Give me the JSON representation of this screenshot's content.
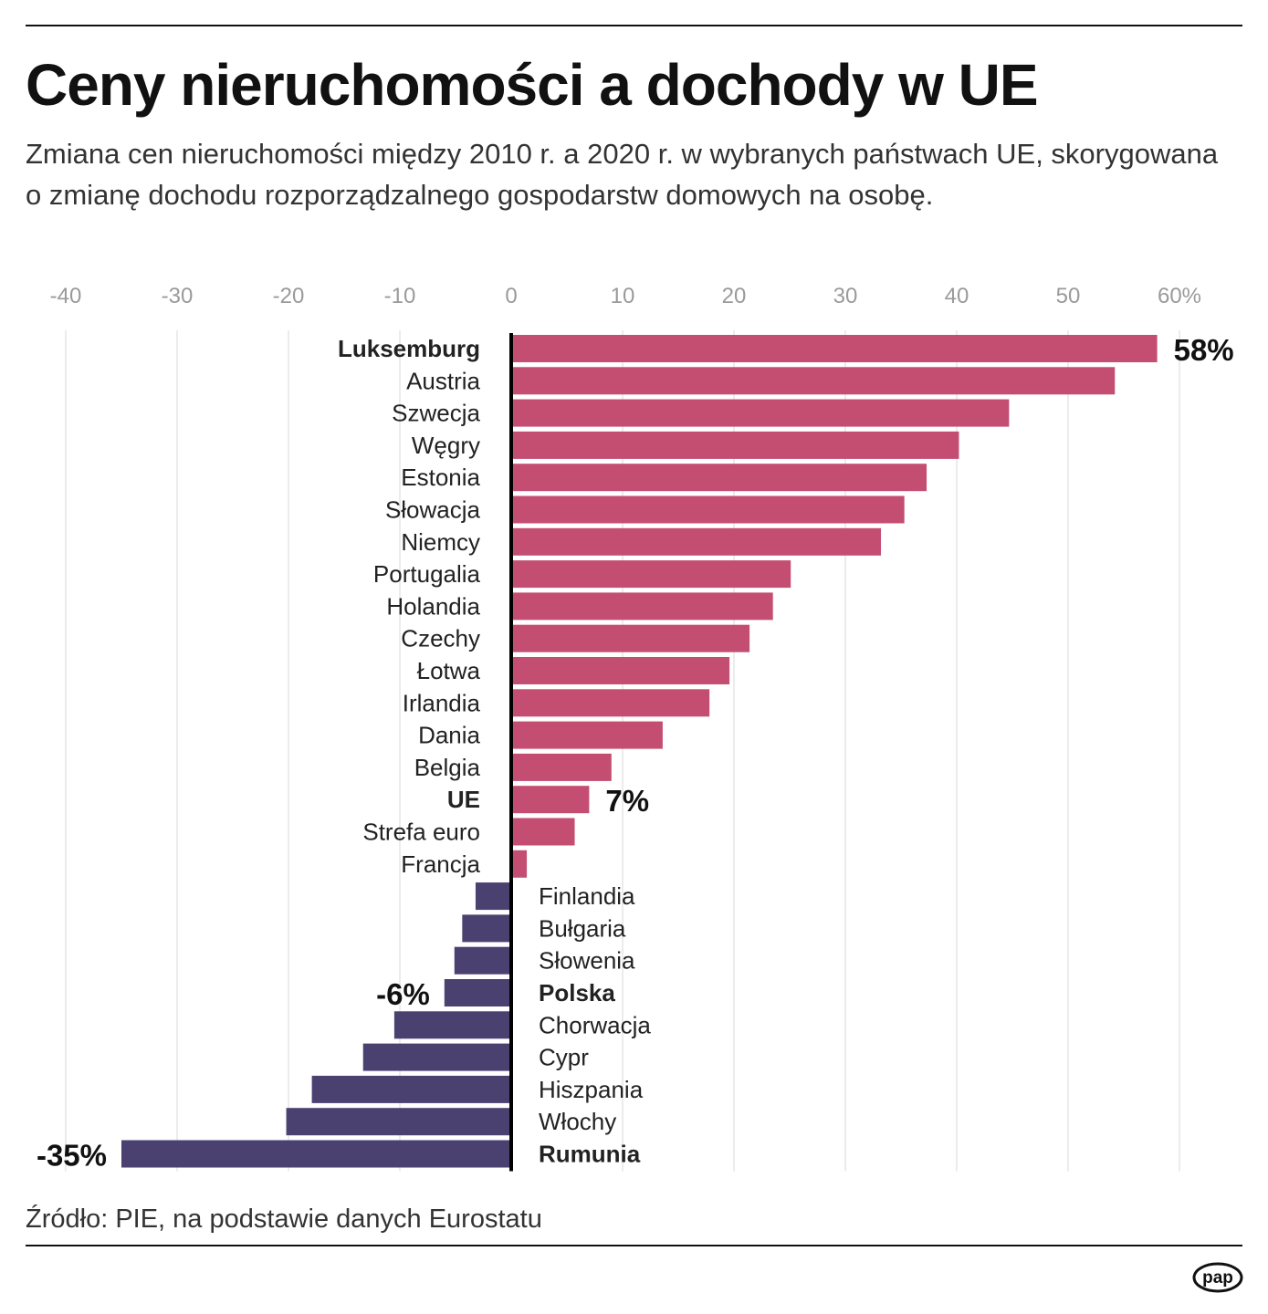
{
  "header": {
    "title": "Ceny nieruchomości a dochody w UE",
    "subtitle": "Zmiana cen nieruchomości między 2010 r. a 2020 r. w wybranych państwach UE, skorygowana o zmianę dochodu rozporządzalnego gospodarstw domowych na osobę."
  },
  "footer": {
    "source": "Źródło: PIE, na podstawie danych Eurostatu",
    "logo_text": "pap"
  },
  "colors": {
    "positive": "#c44e72",
    "negative": "#4a4170",
    "grid": "#e6e6e6",
    "axis": "#000000",
    "tick_text": "#9a9a9a"
  },
  "chart_data": {
    "type": "bar",
    "orientation": "horizontal",
    "title": "Ceny nieruchomości a dochody w UE",
    "subtitle": "Zmiana cen nieruchomości między 2010 r. a 2020 r. w wybranych państwach UE, skorygowana o zmianę dochodu rozporządzalnego gospodarstw domowych na osobę.",
    "xlim": [
      -40,
      60
    ],
    "ticks": [
      -40,
      -30,
      -20,
      -10,
      0,
      10,
      20,
      30,
      40,
      50,
      60
    ],
    "tick_labels": [
      "-40",
      "-30",
      "-20",
      "-10",
      "0",
      "10",
      "20",
      "30",
      "40",
      "50",
      "60%"
    ],
    "grid": true,
    "categories": [
      "Luksemburg",
      "Austria",
      "Szwecja",
      "Węgry",
      "Estonia",
      "Słowacja",
      "Niemcy",
      "Portugalia",
      "Holandia",
      "Czechy",
      "Łotwa",
      "Irlandia",
      "Dania",
      "Belgia",
      "UE",
      "Strefa euro",
      "Francja",
      "Finlandia",
      "Bułgaria",
      "Słowenia",
      "Polska",
      "Chorwacja",
      "Cypr",
      "Hiszpania",
      "Włochy",
      "Rumunia"
    ],
    "values": [
      58,
      54.2,
      44.7,
      40.2,
      37.3,
      35.3,
      33.2,
      25.1,
      23.5,
      21.4,
      19.6,
      17.8,
      13.6,
      9.0,
      7.0,
      5.7,
      1.4,
      -3.2,
      -4.4,
      -5.1,
      -6.0,
      -10.5,
      -13.3,
      -17.9,
      -20.2,
      -35.0
    ],
    "bold_categories": [
      "Luksemburg",
      "UE",
      "Polska",
      "Rumunia"
    ],
    "value_labels": [
      {
        "category": "Luksemburg",
        "text": "58%"
      },
      {
        "category": "UE",
        "text": "7%"
      },
      {
        "category": "Polska",
        "text": "-6%"
      },
      {
        "category": "Rumunia",
        "text": "-35%"
      }
    ]
  }
}
